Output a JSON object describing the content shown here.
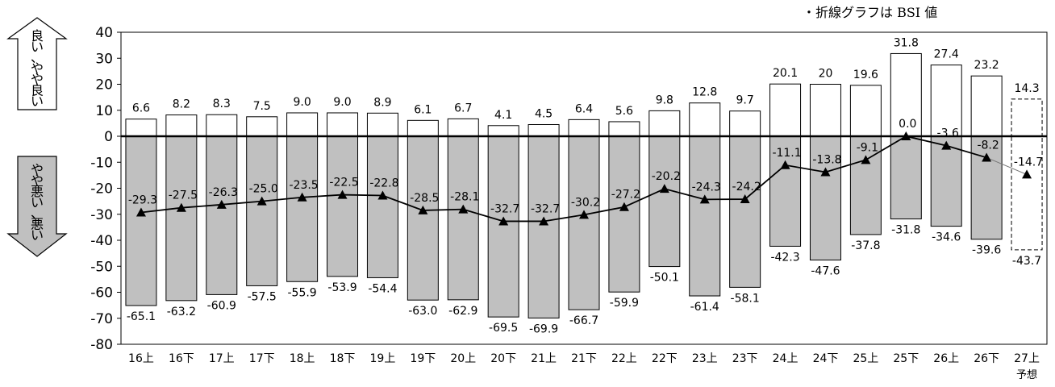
{
  "note": "・折線グラフは BSI 値",
  "up_arrow_label": "良い、やや良い",
  "down_arrow_label": "やや悪い、悪い",
  "chart_data": {
    "type": "bar",
    "categories": [
      "16上",
      "16下",
      "17上",
      "17下",
      "18上",
      "18下",
      "19上",
      "19下",
      "20上",
      "20下",
      "21上",
      "21下",
      "22上",
      "22下",
      "23上",
      "23下",
      "24上",
      "24下",
      "25上",
      "25下",
      "26上",
      "26下",
      "27上"
    ],
    "forecast_note": "予想",
    "ylim": [
      -80,
      40
    ],
    "yticks": [
      40,
      30,
      20,
      10,
      0,
      -10,
      -20,
      -30,
      -40,
      -50,
      -60,
      -70,
      -80
    ],
    "grid": false,
    "series": [
      {
        "values": [
          6.6,
          8.2,
          8.3,
          7.5,
          9.0,
          9.0,
          8.9,
          6.1,
          6.7,
          4.1,
          4.5,
          6.4,
          5.6,
          9.8,
          12.8,
          9.7,
          20.1,
          20,
          19.6,
          31.8,
          27.4,
          23.2,
          14.3
        ],
        "labels": [
          "6.6",
          "8.2",
          "8.3",
          "7.5",
          "9.0",
          "9.0",
          "8.9",
          "6.1",
          "6.7",
          "4.1",
          "4.5",
          "6.4",
          "5.6",
          "9.8",
          "12.8",
          "9.7",
          "20.1",
          "20",
          "19.6",
          "31.8",
          "27.4",
          "23.2",
          "14.3"
        ],
        "color": "#ffffff"
      },
      {
        "values": [
          -65.1,
          -63.2,
          -60.9,
          -57.5,
          -55.9,
          -53.9,
          -54.4,
          -63.0,
          -62.9,
          -69.5,
          -69.9,
          -66.7,
          -59.9,
          -50.1,
          -61.4,
          -58.1,
          -42.3,
          -47.6,
          -37.8,
          -31.8,
          -34.6,
          -39.6,
          -43.7
        ],
        "labels": [
          "-65.1",
          "-63.2",
          "-60.9",
          "-57.5",
          "-55.9",
          "-53.9",
          "-54.4",
          "-63.0",
          "-62.9",
          "-69.5",
          "-69.9",
          "-66.7",
          "-59.9",
          "-50.1",
          "-61.4",
          "-58.1",
          "-42.3",
          "-47.6",
          "-37.8",
          "-31.8",
          "-34.6",
          "-39.6",
          "-43.7"
        ],
        "color": "#c0c0c0"
      },
      {
        "type": "line",
        "values": [
          -29.3,
          -27.5,
          -26.3,
          -25.0,
          -23.5,
          -22.5,
          -22.8,
          -28.5,
          -28.1,
          -32.7,
          -32.7,
          -30.2,
          -27.2,
          -20.2,
          -24.3,
          -24.2,
          -11.1,
          -13.8,
          -9.1,
          0.0,
          -3.6,
          -8.2,
          -14.7
        ],
        "labels": [
          "-29.3",
          "-27.5",
          "-26.3",
          "-25.0",
          "-23.5",
          "-22.5",
          "-22.8",
          "-28.5",
          "-28.1",
          "-32.7",
          "-32.7",
          "-30.2",
          "-27.2",
          "-20.2",
          "-24.3",
          "-24.2",
          "-11.1",
          "-13.8",
          "-9.1",
          "0.0",
          "-3.6",
          "-8.2",
          "-14.7"
        ],
        "color": "#000000"
      }
    ]
  }
}
